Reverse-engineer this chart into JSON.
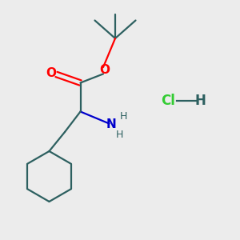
{
  "background_color": "#ececec",
  "bond_color": "#2d6060",
  "oxygen_color": "#ff0000",
  "nitrogen_color": "#0000cc",
  "hcl_cl_color": "#33cc33",
  "hcl_h_color": "#2d6060",
  "figsize": [
    3.0,
    3.0
  ],
  "dpi": 100,
  "xlim": [
    0,
    10
  ],
  "ylim": [
    0,
    10
  ]
}
